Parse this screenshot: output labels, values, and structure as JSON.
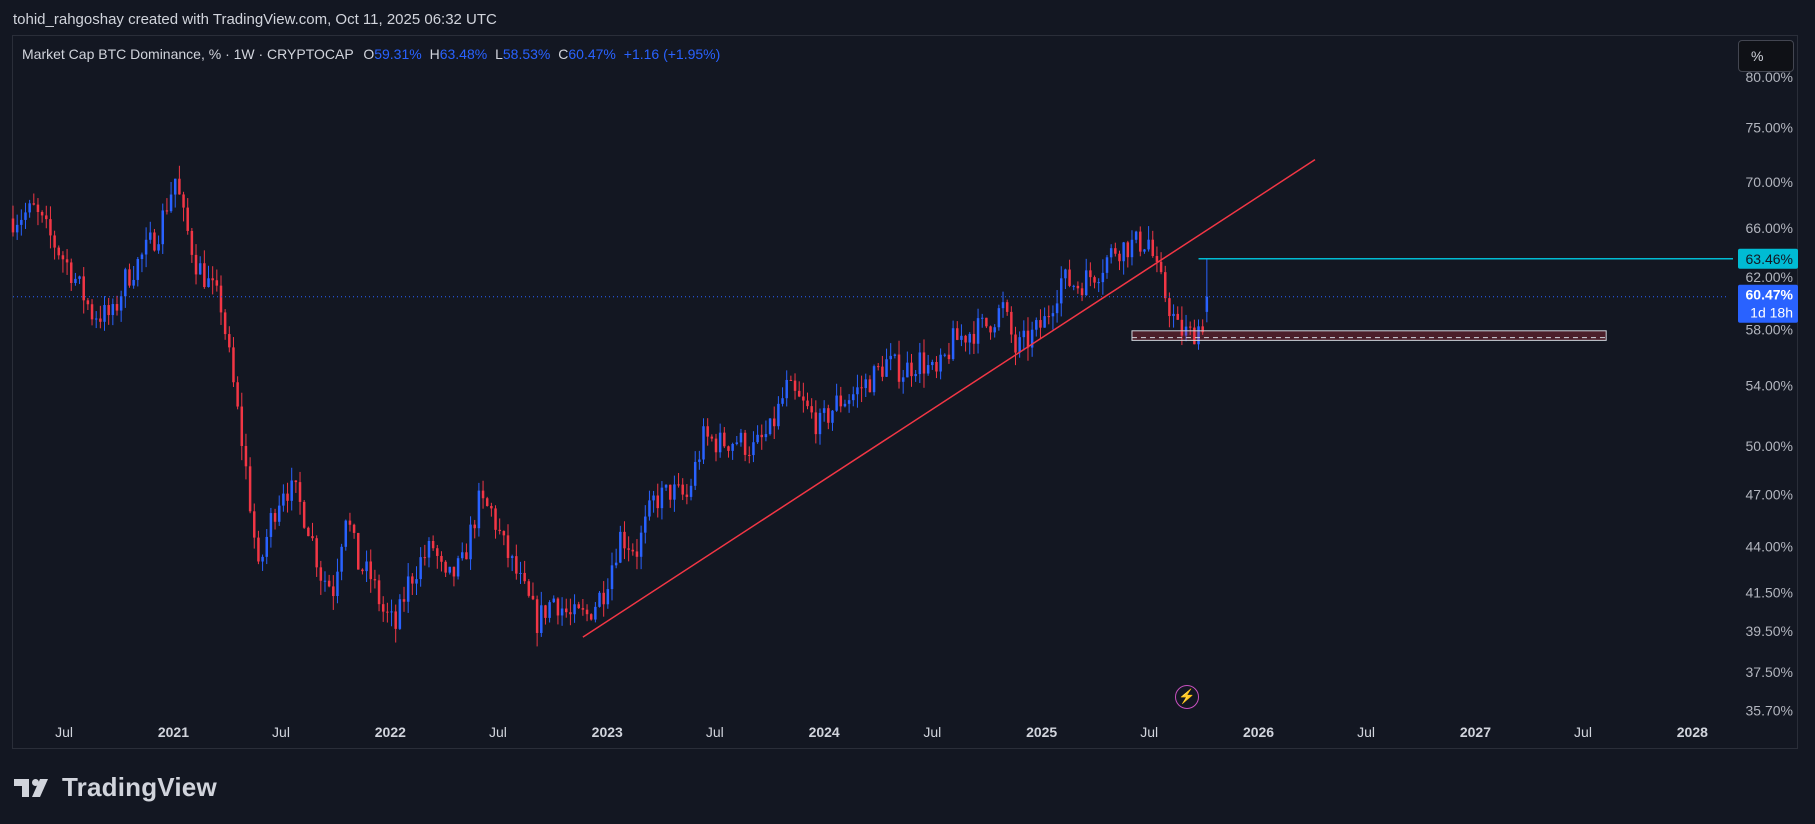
{
  "credit": "tohid_rahgoshay created with TradingView.com, Oct 11, 2025 06:32 UTC",
  "legend": {
    "symbol": "Market Cap BTC Dominance, % · 1W · CRYPTOCAP",
    "o_label": "O",
    "o_value": "59.31%",
    "h_label": "H",
    "h_value": "63.48%",
    "l_label": "L",
    "l_value": "58.53%",
    "c_label": "C",
    "c_value": "60.47%",
    "change": "+1.16 (+1.95%)"
  },
  "scale_button": "%",
  "brand": "TradingView",
  "icons": {
    "flash": "lightning-icon",
    "logo": "tradingview-logo-icon"
  },
  "colors": {
    "background": "#131722",
    "up": "#2962ff",
    "down": "#f23645",
    "trendline": "#f23645",
    "resistance": "#00bcd4",
    "support_zone": "#f23645"
  },
  "chart_data": {
    "type": "candlestick",
    "title": "Market Cap BTC Dominance, %",
    "interval": "1W",
    "exchange": "CRYPTOCAP",
    "y_scale": "log",
    "ylim": [
      35.5,
      80.5
    ],
    "y_ticks": [
      "80.00%",
      "75.00%",
      "70.00%",
      "66.00%",
      "62.00%",
      "58.00%",
      "54.00%",
      "50.00%",
      "47.00%",
      "44.00%",
      "41.50%",
      "39.50%",
      "37.50%",
      "35.70%"
    ],
    "x_ticks": [
      "Jul",
      "2021",
      "Jul",
      "2022",
      "Jul",
      "2023",
      "Jul",
      "2024",
      "Jul",
      "2025",
      "Jul",
      "2026",
      "Jul",
      "2027",
      "Jul",
      "2028"
    ],
    "x_range": [
      "2020-04-06",
      "2028-03-01"
    ],
    "price_labels": [
      {
        "value": "63.46%",
        "kind": "resistance"
      },
      {
        "value": "60.47%",
        "kind": "last",
        "countdown": "1d 18h"
      }
    ],
    "drawings": {
      "resistance_line": {
        "value": 63.46,
        "from": "2025-09-22",
        "to": "2028-03-01"
      },
      "trendline": {
        "from": {
          "date": "2022-11-21",
          "value": 39.2
        },
        "to": {
          "date": "2026-04-06",
          "value": 72.0
        }
      },
      "support_zone": {
        "from": "2025-06-02",
        "to": "2027-08-09",
        "low": 57.2,
        "high": 57.9
      }
    },
    "series_path": [
      [
        "2020-04-06",
        66.8
      ],
      [
        "2020-05-11",
        67.5
      ],
      [
        "2020-06-08",
        65.2
      ],
      [
        "2020-07-13",
        62.5
      ],
      [
        "2020-08-17",
        59.2
      ],
      [
        "2020-09-21",
        59.0
      ],
      [
        "2020-10-12",
        61.8
      ],
      [
        "2020-11-09",
        63.6
      ],
      [
        "2020-12-07",
        65.8
      ],
      [
        "2021-01-04",
        70.3
      ],
      [
        "2021-01-18",
        66.8
      ],
      [
        "2021-02-08",
        63.2
      ],
      [
        "2021-03-01",
        61.5
      ],
      [
        "2021-03-22",
        59.8
      ],
      [
        "2021-04-12",
        54.0
      ],
      [
        "2021-05-03",
        48.5
      ],
      [
        "2021-05-24",
        42.5
      ],
      [
        "2021-06-14",
        45.5
      ],
      [
        "2021-07-05",
        47.5
      ],
      [
        "2021-07-26",
        47.0
      ],
      [
        "2021-08-16",
        45.2
      ],
      [
        "2021-09-06",
        42.5
      ],
      [
        "2021-09-27",
        41.7
      ],
      [
        "2021-10-18",
        46.0
      ],
      [
        "2021-11-08",
        43.0
      ],
      [
        "2021-11-29",
        42.3
      ],
      [
        "2021-12-20",
        40.5
      ],
      [
        "2022-01-10",
        39.7
      ],
      [
        "2022-01-31",
        42.0
      ],
      [
        "2022-02-21",
        43.2
      ],
      [
        "2022-03-14",
        44.0
      ],
      [
        "2022-04-04",
        42.0
      ],
      [
        "2022-05-02",
        43.0
      ],
      [
        "2022-05-30",
        46.5
      ],
      [
        "2022-06-20",
        46.0
      ],
      [
        "2022-07-11",
        44.0
      ],
      [
        "2022-08-08",
        42.0
      ],
      [
        "2022-09-05",
        40.0
      ],
      [
        "2022-10-03",
        41.2
      ],
      [
        "2022-10-31",
        40.2
      ],
      [
        "2022-11-28",
        40.3
      ],
      [
        "2022-12-26",
        41.6
      ],
      [
        "2023-01-23",
        44.6
      ],
      [
        "2023-02-20",
        43.8
      ],
      [
        "2023-03-20",
        46.6
      ],
      [
        "2023-04-17",
        47.2
      ],
      [
        "2023-05-15",
        46.8
      ],
      [
        "2023-06-12",
        50.5
      ],
      [
        "2023-07-10",
        50.2
      ],
      [
        "2023-08-07",
        50.4
      ],
      [
        "2023-09-04",
        49.8
      ],
      [
        "2023-10-02",
        50.9
      ],
      [
        "2023-10-30",
        53.8
      ],
      [
        "2023-11-27",
        52.6
      ],
      [
        "2023-12-25",
        51.3
      ],
      [
        "2024-01-22",
        52.8
      ],
      [
        "2024-02-19",
        53.4
      ],
      [
        "2024-03-18",
        54.4
      ],
      [
        "2024-04-15",
        55.6
      ],
      [
        "2024-05-13",
        55.0
      ],
      [
        "2024-06-10",
        55.8
      ],
      [
        "2024-07-08",
        54.6
      ],
      [
        "2024-08-05",
        57.1
      ],
      [
        "2024-09-02",
        57.8
      ],
      [
        "2024-09-30",
        58.3
      ],
      [
        "2024-10-28",
        59.6
      ],
      [
        "2024-11-18",
        56.5
      ],
      [
        "2024-12-09",
        57.2
      ],
      [
        "2025-01-06",
        58.6
      ],
      [
        "2025-02-03",
        61.8
      ],
      [
        "2025-03-03",
        61.4
      ],
      [
        "2025-04-07",
        62.6
      ],
      [
        "2025-05-05",
        64.3
      ],
      [
        "2025-06-02",
        64.6
      ],
      [
        "2025-06-30",
        65.0
      ],
      [
        "2025-07-14",
        62.3
      ],
      [
        "2025-07-28",
        60.6
      ],
      [
        "2025-08-18",
        58.0
      ],
      [
        "2025-09-08",
        57.6
      ],
      [
        "2025-09-29",
        58.5
      ],
      [
        "2025-10-06",
        60.47
      ]
    ]
  }
}
